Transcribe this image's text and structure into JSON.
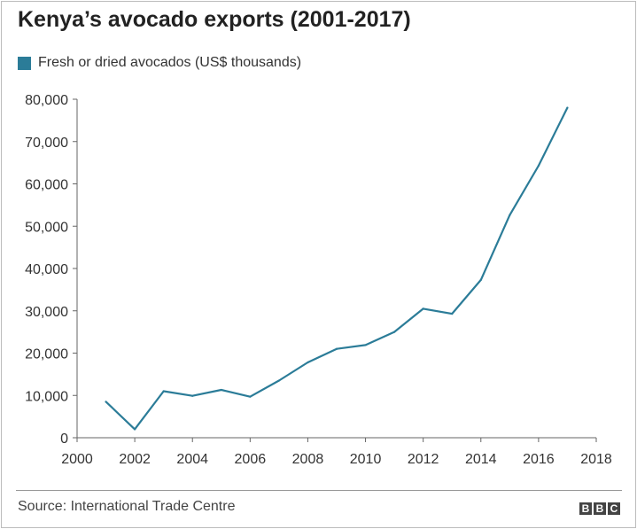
{
  "title": "Kenya’s avocado exports (2001-2017)",
  "source": "Source: International Trade Centre",
  "logo": [
    "B",
    "B",
    "C"
  ],
  "colors": {
    "series": "#2b7c98",
    "axis": "#666666",
    "text": "#222222"
  },
  "chart_data": {
    "type": "line",
    "title": "Kenya’s avocado exports (2001-2017)",
    "xlabel": "",
    "ylabel": "",
    "xlim": [
      2000,
      2018
    ],
    "ylim": [
      0,
      80000
    ],
    "x_ticks": [
      2000,
      2002,
      2004,
      2006,
      2008,
      2010,
      2012,
      2014,
      2016,
      2018
    ],
    "x_tick_labels": [
      "2000",
      "2002",
      "2004",
      "2006",
      "2008",
      "2010",
      "2012",
      "2014",
      "2016",
      "2018"
    ],
    "y_ticks": [
      0,
      10000,
      20000,
      30000,
      40000,
      50000,
      60000,
      70000,
      80000
    ],
    "y_tick_labels": [
      "0",
      "10,000",
      "20,000",
      "30,000",
      "40,000",
      "50,000",
      "60,000",
      "70,000",
      "80,000"
    ],
    "grid": false,
    "legend_position": "top-left",
    "series": [
      {
        "name": "Fresh or dried avocados (US$ thousands)",
        "color": "#2b7c98",
        "x": [
          2001,
          2002,
          2003,
          2004,
          2005,
          2006,
          2007,
          2008,
          2009,
          2010,
          2011,
          2012,
          2013,
          2014,
          2015,
          2016,
          2017
        ],
        "y": [
          8500,
          2000,
          11000,
          9900,
          11300,
          9700,
          13500,
          17800,
          21000,
          21900,
          25000,
          30500,
          29300,
          37300,
          52600,
          64300,
          78000
        ]
      }
    ]
  }
}
